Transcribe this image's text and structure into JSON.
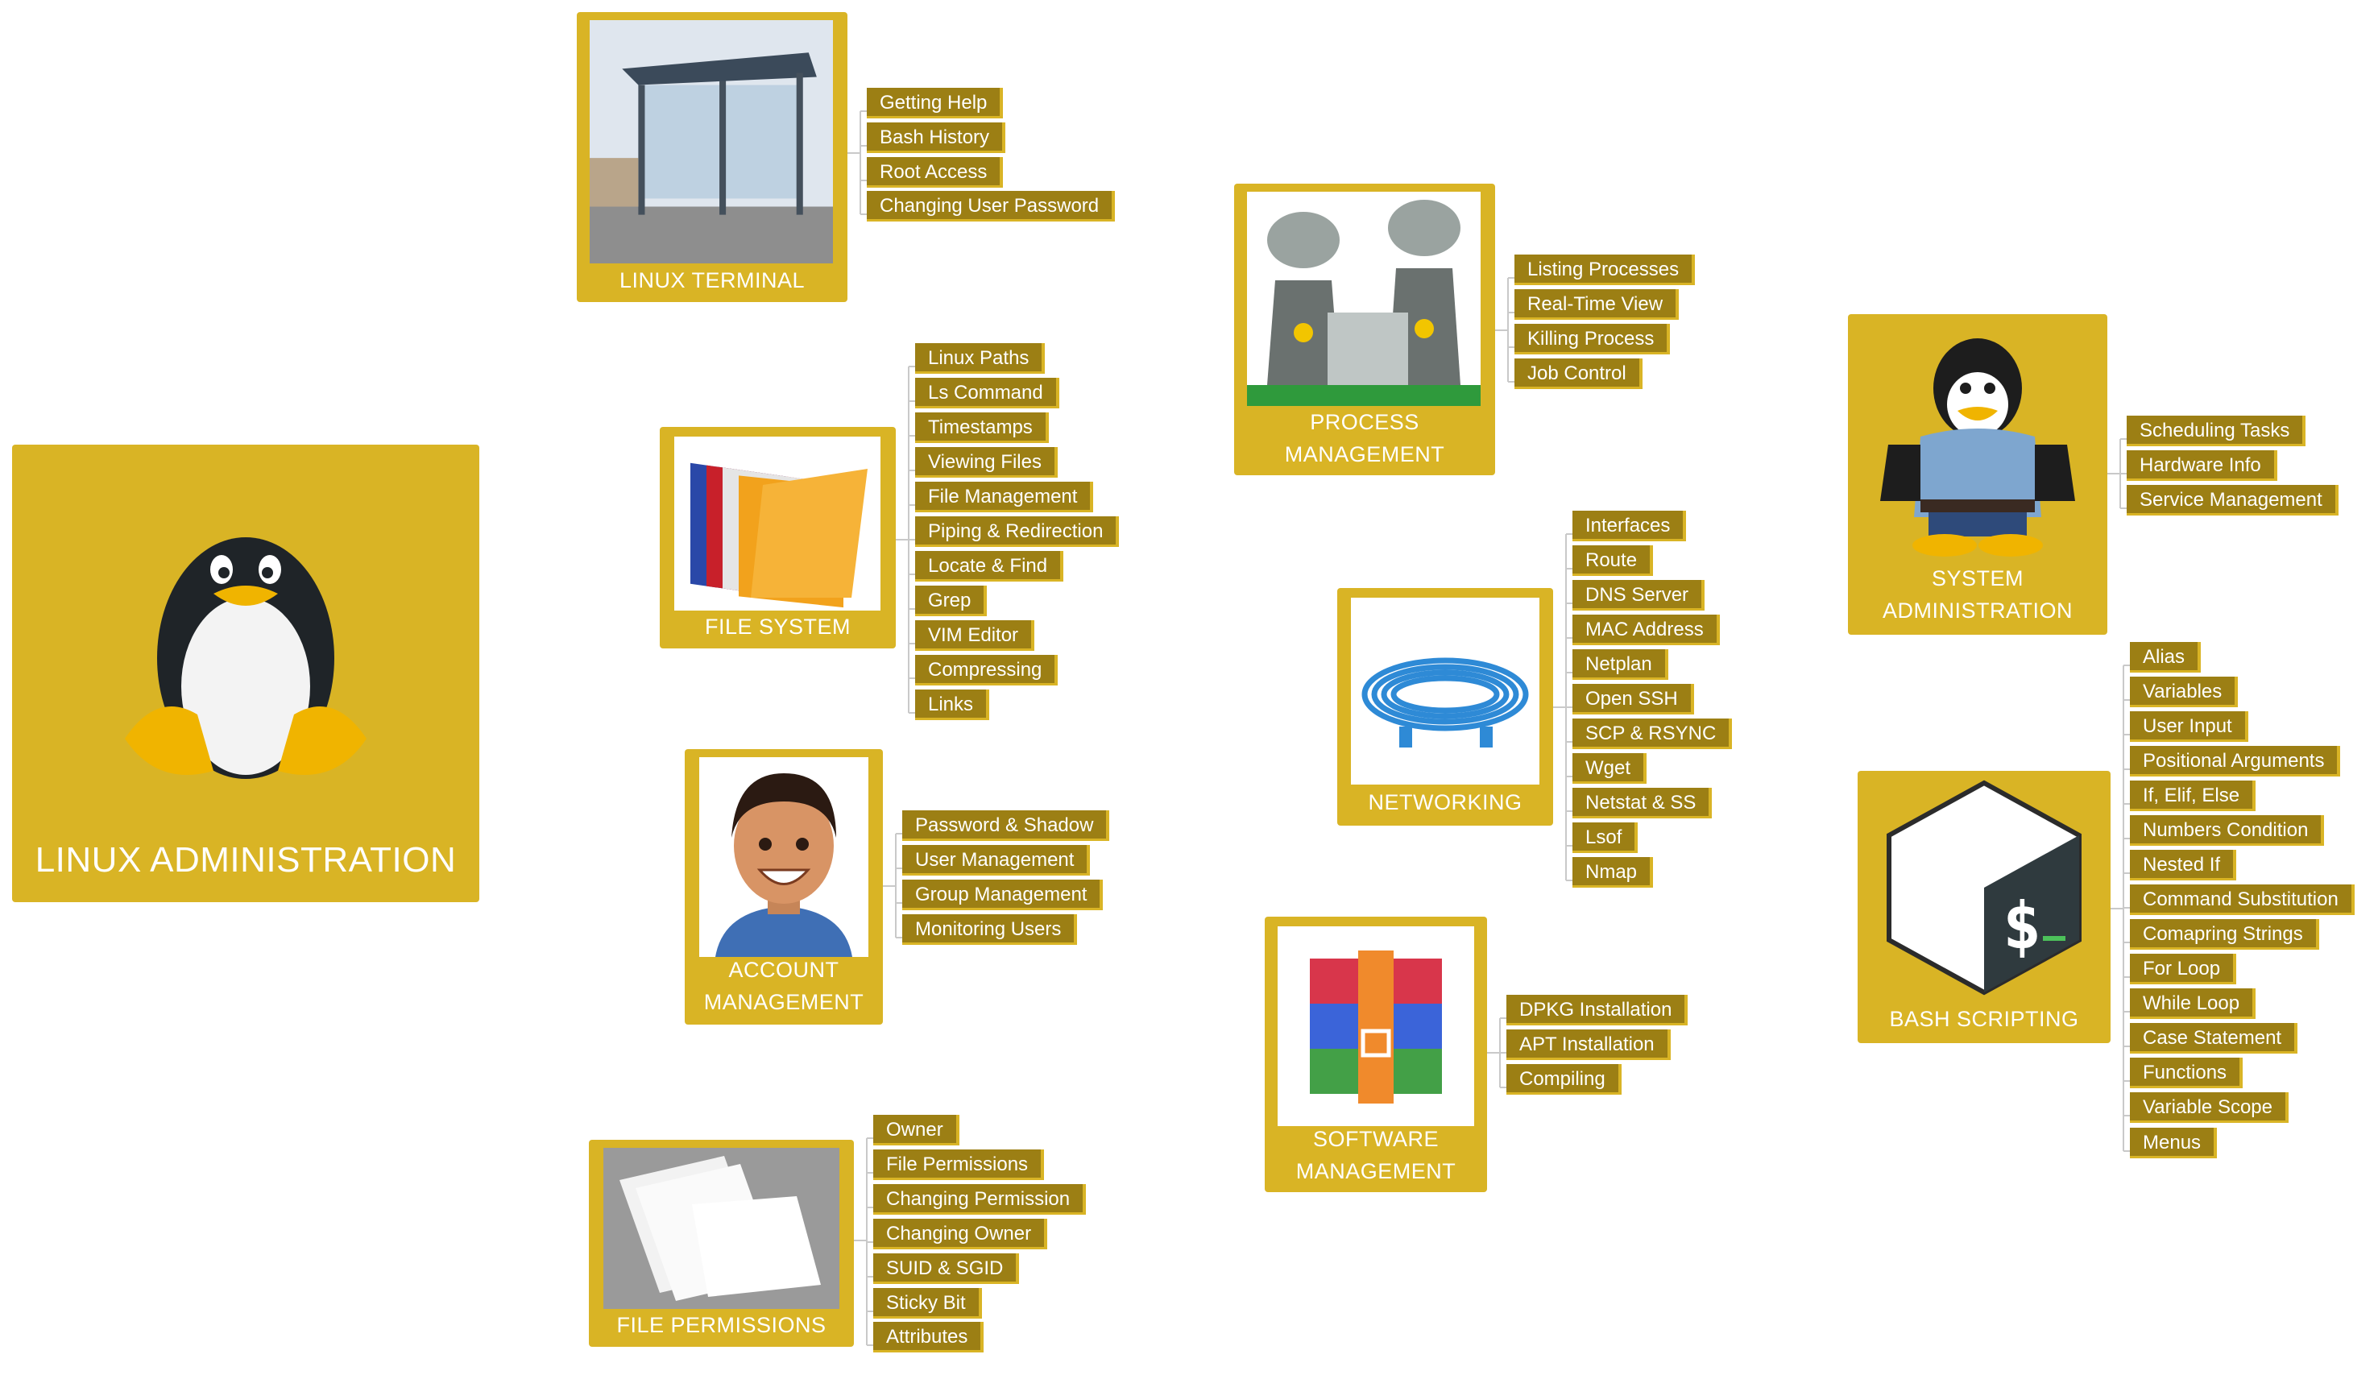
{
  "colors": {
    "card": "#d9b425",
    "tag": "#9c7f14",
    "text": "#ffffff",
    "connector": "#c9c9c9"
  },
  "main": {
    "title": "LINUX ADMINISTRATION",
    "icon": "tux-penguin-icon"
  },
  "sections": {
    "linux_terminal": {
      "title": "LINUX TERMINAL",
      "icon": "bus-stop-image",
      "items": [
        "Getting Help",
        "Bash History",
        "Root Access",
        "Changing User Password"
      ]
    },
    "file_system": {
      "title": "FILE SYSTEM",
      "icon": "folders-image",
      "items": [
        "Linux Paths",
        "Ls Command",
        "Timestamps",
        "Viewing Files",
        "File Management",
        "Piping & Redirection",
        "Locate & Find",
        "Grep",
        "VIM Editor",
        "Compressing",
        "Links"
      ]
    },
    "account_management": {
      "title_lines": [
        "ACCOUNT",
        "MANAGEMENT"
      ],
      "icon": "user-avatar-image",
      "items": [
        "Password & Shadow",
        "User Management",
        "Group Management",
        "Monitoring Users"
      ]
    },
    "file_permissions": {
      "title": "FILE PERMISSIONS",
      "icon": "paper-stack-image",
      "items": [
        "Owner",
        "File Permissions",
        "Changing Permission",
        "Changing Owner",
        "SUID & SGID",
        "Sticky Bit",
        "Attributes"
      ]
    },
    "process_management": {
      "title_lines": [
        "PROCESS",
        "MANAGEMENT"
      ],
      "icon": "power-plant-image",
      "items": [
        "Listing Processes",
        "Real-Time View",
        "Killing Process",
        "Job Control"
      ]
    },
    "networking": {
      "title": "NETWORKING",
      "icon": "network-cable-image",
      "items": [
        "Interfaces",
        "Route",
        "DNS Server",
        "MAC Address",
        "Netplan",
        "Open SSH",
        "SCP & RSYNC",
        "Wget",
        "Netstat & SS",
        "Lsof",
        "Nmap"
      ]
    },
    "software_management": {
      "title_lines": [
        "SOFTWARE",
        "MANAGEMENT"
      ],
      "icon": "archive-package-image",
      "items": [
        "DPKG Installation",
        "APT Installation",
        "Compiling"
      ]
    },
    "system_administration": {
      "title_lines": [
        "SYSTEM",
        "ADMINISTRATION"
      ],
      "icon": "police-penguin-image",
      "items": [
        "Scheduling Tasks",
        "Hardware Info",
        "Service Management"
      ]
    },
    "bash_scripting": {
      "title": "BASH SCRIPTING",
      "icon": "bash-logo-image",
      "items": [
        "Alias",
        "Variables",
        "User Input",
        "Positional Arguments",
        "If, Elif, Else",
        "Numbers Condition",
        "Nested If",
        "Command Substitution",
        "Comapring Strings",
        "For Loop",
        "While Loop",
        "Case Statement",
        "Functions",
        "Variable Scope",
        "Menus"
      ]
    }
  }
}
